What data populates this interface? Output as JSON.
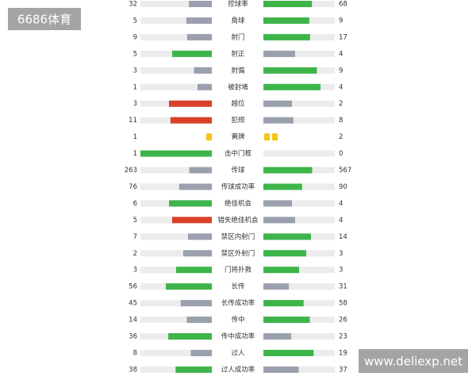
{
  "watermark_top": "6686体育",
  "watermark_bottom": "www.deliexp.net",
  "colors": {
    "track": "#ececec",
    "card": "#f2c417"
  },
  "stats": [
    {
      "label": "控球率",
      "home": 32,
      "away": 68,
      "home_color": "#9aa0ad",
      "away_color": "#3db54a"
    },
    {
      "label": "角球",
      "home": 5,
      "away": 9,
      "home_color": "#9aa0ad",
      "away_color": "#3db54a"
    },
    {
      "label": "射门",
      "home": 9,
      "away": 17,
      "home_color": "#9aa0ad",
      "away_color": "#3db54a"
    },
    {
      "label": "射正",
      "home": 5,
      "away": 4,
      "home_color": "#3db54a",
      "away_color": "#9aa0ad"
    },
    {
      "label": "射偏",
      "home": 3,
      "away": 9,
      "home_color": "#9aa0ad",
      "away_color": "#3db54a"
    },
    {
      "label": "被封堵",
      "home": 1,
      "away": 4,
      "home_color": "#9aa0ad",
      "away_color": "#3db54a"
    },
    {
      "label": "越位",
      "home": 3,
      "away": 2,
      "home_color": "#d9412b",
      "away_color": "#9aa0ad"
    },
    {
      "label": "犯规",
      "home": 11,
      "away": 8,
      "home_color": "#d9412b",
      "away_color": "#9aa0ad"
    },
    {
      "label": "黄牌",
      "home": 1,
      "away": 2,
      "kind": "cards"
    },
    {
      "label": "击中门框",
      "home": 1,
      "away": 0,
      "home_color": "#3db54a",
      "away_color": "#9aa0ad"
    },
    {
      "label": "传球",
      "home": 263,
      "away": 567,
      "home_color": "#9aa0ad",
      "away_color": "#3db54a"
    },
    {
      "label": "传球成功率",
      "home": 76,
      "away": 90,
      "home_color": "#9aa0ad",
      "away_color": "#3db54a"
    },
    {
      "label": "绝佳机会",
      "home": 6,
      "away": 4,
      "home_color": "#3db54a",
      "away_color": "#9aa0ad"
    },
    {
      "label": "错失绝佳机会",
      "home": 5,
      "away": 4,
      "home_color": "#d9412b",
      "away_color": "#9aa0ad"
    },
    {
      "label": "禁区内射门",
      "home": 7,
      "away": 14,
      "home_color": "#9aa0ad",
      "away_color": "#3db54a"
    },
    {
      "label": "禁区外射门",
      "home": 2,
      "away": 3,
      "home_color": "#9aa0ad",
      "away_color": "#3db54a"
    },
    {
      "label": "门将扑救",
      "home": 3,
      "away": 3,
      "home_color": "#3db54a",
      "away_color": "#3db54a"
    },
    {
      "label": "长传",
      "home": 56,
      "away": 31,
      "home_color": "#3db54a",
      "away_color": "#9aa0ad"
    },
    {
      "label": "长传成功率",
      "home": 45,
      "away": 58,
      "home_color": "#9aa0ad",
      "away_color": "#3db54a"
    },
    {
      "label": "传中",
      "home": 14,
      "away": 26,
      "home_color": "#9aa0ad",
      "away_color": "#3db54a"
    },
    {
      "label": "传中成功率",
      "home": 36,
      "away": 23,
      "home_color": "#3db54a",
      "away_color": "#9aa0ad"
    },
    {
      "label": "过人",
      "home": 8,
      "away": 19,
      "home_color": "#9aa0ad",
      "away_color": "#3db54a"
    },
    {
      "label": "过人成功率",
      "home": 38,
      "away": 37,
      "home_color": "#3db54a",
      "away_color": "#9aa0ad"
    }
  ]
}
